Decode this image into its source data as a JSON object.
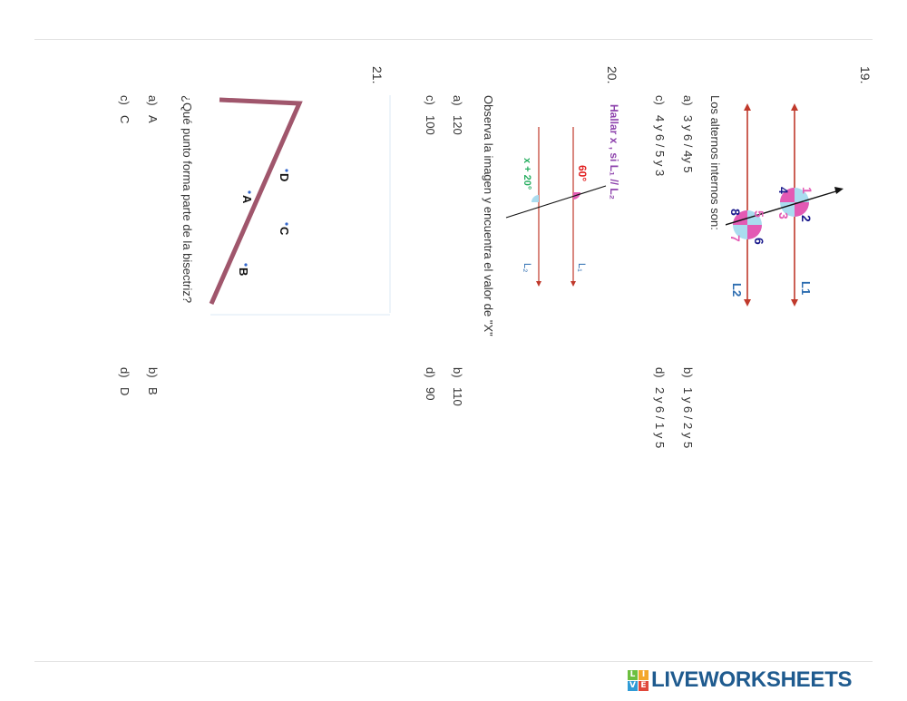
{
  "brand": {
    "logo_letters": [
      "L",
      "I",
      "V",
      "E"
    ],
    "name": "LIVEWORKSHEETS"
  },
  "questions": [
    {
      "number": "19.",
      "text": "Los alternos internos son:",
      "figure_labels": [
        "1",
        "2",
        "3",
        "4",
        "5",
        "6",
        "7",
        "8",
        "L1",
        "L2"
      ],
      "options": [
        {
          "letter": "a)",
          "text": "3 y 6 / 4y 5"
        },
        {
          "letter": "b)",
          "text": "1 y 6 / 2 y 5"
        },
        {
          "letter": "c)",
          "text": "4 y 6 / 5 y 3"
        },
        {
          "letter": "d)",
          "text": "2 y 6 / 1 y 5"
        }
      ]
    },
    {
      "number": "20.",
      "figure_title": "Hallar x , si L₁ // L₂",
      "figure_labels": [
        "60°",
        "x + 20°",
        "L₁",
        "L₂"
      ],
      "text": "Observa la imagen y encuentra el valor de \"X\"",
      "options": [
        {
          "letter": "a)",
          "text": "120"
        },
        {
          "letter": "b)",
          "text": "110"
        },
        {
          "letter": "c)",
          "text": "100"
        },
        {
          "letter": "d)",
          "text": "90"
        }
      ]
    },
    {
      "number": "21.",
      "figure_labels": [
        "A",
        "B",
        "C",
        "D"
      ],
      "text": "¿Qué punto forma parte de la bisectriz?",
      "options": [
        {
          "letter": "a)",
          "text": "A"
        },
        {
          "letter": "b)",
          "text": "B"
        },
        {
          "letter": "c)",
          "text": "C"
        },
        {
          "letter": "d)",
          "text": "D"
        }
      ]
    }
  ],
  "colors": {
    "line_red": "#c0392b",
    "magenta": "#e35ab4",
    "light_blue": "#a9dcef",
    "dark_blue": "#1a1a8c",
    "purple": "#8e44ad",
    "green": "#27ae60",
    "angle_red": "#e11d1d",
    "bisector_line": "#a0566c"
  }
}
